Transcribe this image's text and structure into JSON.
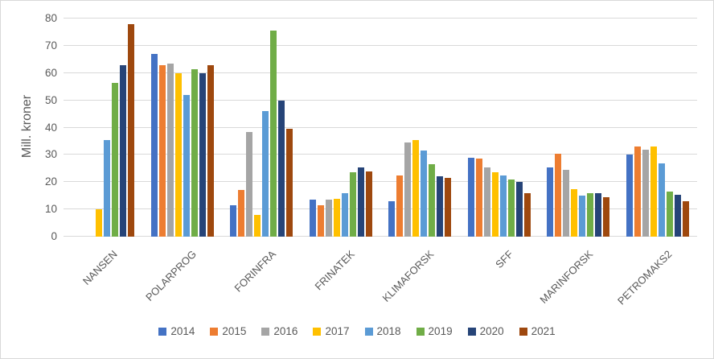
{
  "chart_data": {
    "type": "bar",
    "title": "",
    "xlabel": "",
    "ylabel": "Mill. kroner",
    "ylim": [
      0,
      80
    ],
    "ytick_step": 10,
    "grid": true,
    "legend_position": "bottom",
    "categories": [
      "NANSEN",
      "POLARPROG",
      "FORINFRA",
      "FRINATEK",
      "KLIMAFORSK",
      "SFF",
      "MARINFORSK",
      "PETROMAKS2"
    ],
    "series": [
      {
        "name": "2014",
        "color": "#4472C4",
        "values": [
          0,
          67,
          11.5,
          13.5,
          13,
          29,
          25.5,
          30
        ]
      },
      {
        "name": "2015",
        "color": "#ED7D31",
        "values": [
          0,
          63,
          17,
          11.5,
          22.5,
          28.5,
          30.5,
          33
        ]
      },
      {
        "name": "2016",
        "color": "#A5A5A5",
        "values": [
          0,
          63.5,
          38.5,
          13.5,
          34.5,
          25.5,
          24.5,
          32
        ]
      },
      {
        "name": "2017",
        "color": "#FFC000",
        "values": [
          10,
          60,
          8,
          14,
          35.5,
          23.5,
          17.5,
          33
        ]
      },
      {
        "name": "2018",
        "color": "#5B9BD5",
        "values": [
          35.5,
          52,
          46,
          16,
          31.5,
          22.5,
          15,
          27
        ]
      },
      {
        "name": "2019",
        "color": "#70AD47",
        "values": [
          56.5,
          61.5,
          75.5,
          23.5,
          26.5,
          21,
          16,
          16.5
        ]
      },
      {
        "name": "2020",
        "color": "#264478",
        "values": [
          63,
          60,
          50,
          25.5,
          22,
          20,
          16,
          15.5
        ]
      },
      {
        "name": "2021",
        "color": "#9E480E",
        "values": [
          78,
          63,
          39.5,
          24,
          21.5,
          16,
          14.5,
          13
        ]
      }
    ]
  },
  "style_colors": {
    "text": "#595959",
    "gridline": "#D9D9D9",
    "border": "#D9D9D9",
    "background": "#FFFFFF"
  }
}
